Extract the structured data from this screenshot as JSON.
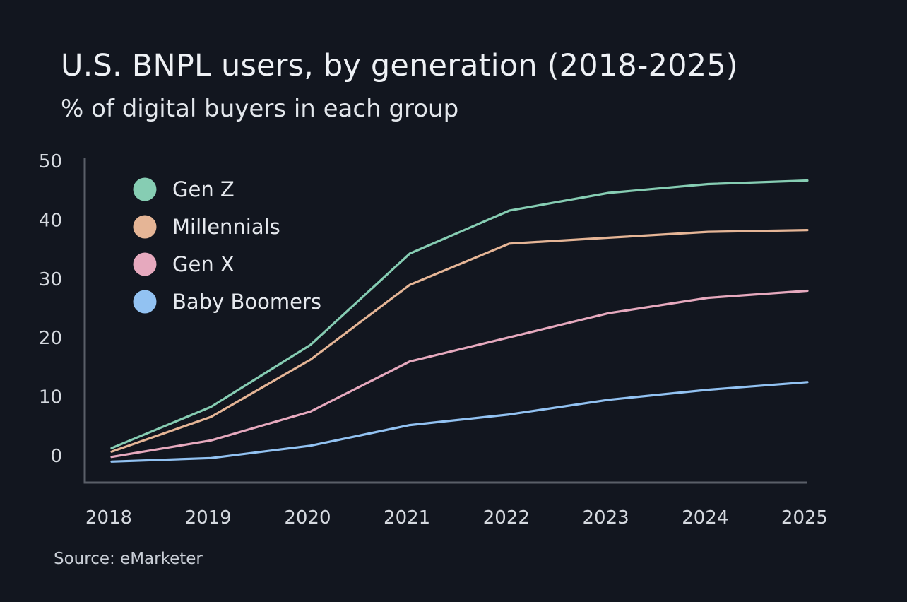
{
  "header": {
    "title": "U.S. BNPL users, by generation (2018-2025)",
    "subtitle": "% of digital buyers in each group"
  },
  "footer": {
    "source": "Source: eMarketer"
  },
  "colors": {
    "background": "#12161f",
    "axis": "#5a5f68",
    "gen_z": "#86cdb3",
    "millennials": "#e5b596",
    "gen_x": "#e6a9be",
    "baby_boomers": "#92c2f2"
  },
  "chart_data": {
    "type": "line",
    "title": "U.S. BNPL users, by generation (2018-2025)",
    "subtitle": "% of digital buyers in each group",
    "xlabel": "",
    "ylabel": "",
    "x": [
      "2018",
      "2019",
      "2020",
      "2021",
      "2022",
      "2023",
      "2024",
      "2025"
    ],
    "ylim": [
      -4.5,
      50
    ],
    "yticks": [
      0,
      10,
      20,
      30,
      40,
      50
    ],
    "grid": false,
    "legend_position": "top-left",
    "series": [
      {
        "name": "Gen Z",
        "color": "#86cdb3",
        "values": [
          1.3,
          8.3,
          18.8,
          34.3,
          41.6,
          44.6,
          46.1,
          46.7
        ]
      },
      {
        "name": "Millennials",
        "color": "#e5b596",
        "values": [
          0.7,
          6.6,
          16.3,
          29.0,
          36.0,
          37.0,
          38.0,
          38.3
        ]
      },
      {
        "name": "Gen X",
        "color": "#e6a9be",
        "values": [
          -0.2,
          2.6,
          7.5,
          16.0,
          20.1,
          24.2,
          26.8,
          28.0
        ]
      },
      {
        "name": "Baby Boomers",
        "color": "#92c2f2",
        "values": [
          -1.0,
          -0.4,
          1.7,
          5.2,
          7.0,
          9.5,
          11.2,
          12.5
        ]
      }
    ],
    "source": "Source: eMarketer"
  }
}
